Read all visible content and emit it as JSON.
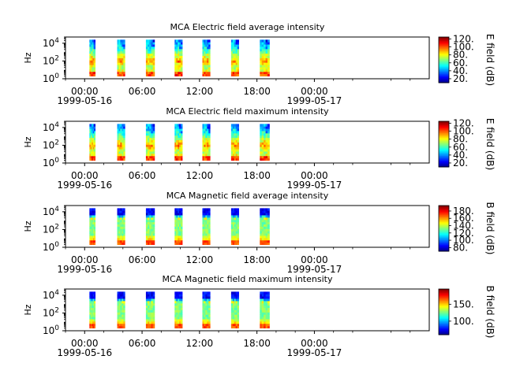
{
  "chart_data": [
    {
      "type": "heatmap",
      "title": "MCA  Electric field average intensity",
      "ylabel": "Hz",
      "yscale": "log",
      "ylim": [
        1,
        50000
      ],
      "yticks": [
        {
          "base": "10",
          "exp": "0"
        },
        {
          "base": "10",
          "exp": "2"
        },
        {
          "base": "10",
          "exp": "4"
        }
      ],
      "xlim_hours": [
        -2,
        36
      ],
      "xticks": [
        {
          "hour": 0,
          "label": "00:00",
          "date": "1999-05-16"
        },
        {
          "hour": 6,
          "label": "06:00",
          "date": ""
        },
        {
          "hour": 12,
          "label": "12:00",
          "date": ""
        },
        {
          "hour": 18,
          "label": "18:00",
          "date": ""
        },
        {
          "hour": 24,
          "label": "00:00",
          "date": "1999-05-17"
        }
      ],
      "colorbar": {
        "label": "E field (dB)",
        "range": [
          10,
          125
        ],
        "ticks": [
          "20.",
          "40.",
          "60.",
          "80.",
          "100.",
          "120."
        ]
      },
      "pattern": "electric",
      "segments_hours": [
        [
          0.5,
          1.1
        ],
        [
          3.4,
          4.2
        ],
        [
          6.4,
          7.3
        ],
        [
          9.4,
          10.2
        ],
        [
          12.3,
          13.1
        ],
        [
          15.3,
          16.1
        ],
        [
          18.3,
          19.3
        ]
      ]
    },
    {
      "type": "heatmap",
      "title": "MCA  Electric field maximum intensity",
      "ylabel": "Hz",
      "yscale": "log",
      "ylim": [
        1,
        50000
      ],
      "yticks": [
        {
          "base": "10",
          "exp": "0"
        },
        {
          "base": "10",
          "exp": "2"
        },
        {
          "base": "10",
          "exp": "4"
        }
      ],
      "xlim_hours": [
        -2,
        36
      ],
      "xticks": [
        {
          "hour": 0,
          "label": "00:00",
          "date": "1999-05-16"
        },
        {
          "hour": 6,
          "label": "06:00",
          "date": ""
        },
        {
          "hour": 12,
          "label": "12:00",
          "date": ""
        },
        {
          "hour": 18,
          "label": "18:00",
          "date": ""
        },
        {
          "hour": 24,
          "label": "00:00",
          "date": "1999-05-17"
        }
      ],
      "colorbar": {
        "label": "E field (dB)",
        "range": [
          10,
          125
        ],
        "ticks": [
          "20.",
          "40.",
          "60.",
          "80.",
          "100.",
          "120."
        ]
      },
      "pattern": "electric",
      "segments_hours": [
        [
          0.5,
          1.1
        ],
        [
          3.4,
          4.2
        ],
        [
          6.4,
          7.3
        ],
        [
          9.4,
          10.2
        ],
        [
          12.3,
          13.1
        ],
        [
          15.3,
          16.1
        ],
        [
          18.3,
          19.3
        ]
      ]
    },
    {
      "type": "heatmap",
      "title": "MCA  Magnetic field average intensity",
      "ylabel": "Hz",
      "yscale": "log",
      "ylim": [
        1,
        50000
      ],
      "yticks": [
        {
          "base": "10",
          "exp": "0"
        },
        {
          "base": "10",
          "exp": "2"
        },
        {
          "base": "10",
          "exp": "4"
        }
      ],
      "xlim_hours": [
        -2,
        36
      ],
      "xticks": [
        {
          "hour": 0,
          "label": "00:00",
          "date": "1999-05-16"
        },
        {
          "hour": 6,
          "label": "06:00",
          "date": ""
        },
        {
          "hour": 12,
          "label": "12:00",
          "date": ""
        },
        {
          "hour": 18,
          "label": "18:00",
          "date": ""
        },
        {
          "hour": 24,
          "label": "00:00",
          "date": "1999-05-17"
        }
      ],
      "colorbar": {
        "label": "B field (dB)",
        "range": [
          70,
          195
        ],
        "ticks": [
          "80.",
          "100.",
          "120.",
          "140.",
          "160.",
          "180."
        ]
      },
      "pattern": "magnetic",
      "segments_hours": [
        [
          0.5,
          1.1
        ],
        [
          3.4,
          4.2
        ],
        [
          6.4,
          7.3
        ],
        [
          9.4,
          10.2
        ],
        [
          12.3,
          13.1
        ],
        [
          15.3,
          16.1
        ],
        [
          18.3,
          19.3
        ]
      ]
    },
    {
      "type": "heatmap",
      "title": "MCA  Magnetic field maximum intensity",
      "ylabel": "Hz",
      "yscale": "log",
      "ylim": [
        1,
        50000
      ],
      "yticks": [
        {
          "base": "10",
          "exp": "0"
        },
        {
          "base": "10",
          "exp": "2"
        },
        {
          "base": "10",
          "exp": "4"
        }
      ],
      "xlim_hours": [
        -2,
        36
      ],
      "xticks": [
        {
          "hour": 0,
          "label": "00:00",
          "date": "1999-05-16"
        },
        {
          "hour": 6,
          "label": "06:00",
          "date": ""
        },
        {
          "hour": 12,
          "label": "12:00",
          "date": ""
        },
        {
          "hour": 18,
          "label": "18:00",
          "date": ""
        },
        {
          "hour": 24,
          "label": "00:00",
          "date": "1999-05-17"
        }
      ],
      "colorbar": {
        "label": "B field (dB)",
        "range": [
          60,
          195
        ],
        "ticks": [
          "100.",
          "150."
        ]
      },
      "pattern": "magnetic",
      "segments_hours": [
        [
          0.5,
          1.1
        ],
        [
          3.4,
          4.2
        ],
        [
          6.4,
          7.3
        ],
        [
          9.4,
          10.2
        ],
        [
          12.3,
          13.1
        ],
        [
          15.3,
          16.1
        ],
        [
          18.3,
          19.3
        ]
      ]
    }
  ]
}
